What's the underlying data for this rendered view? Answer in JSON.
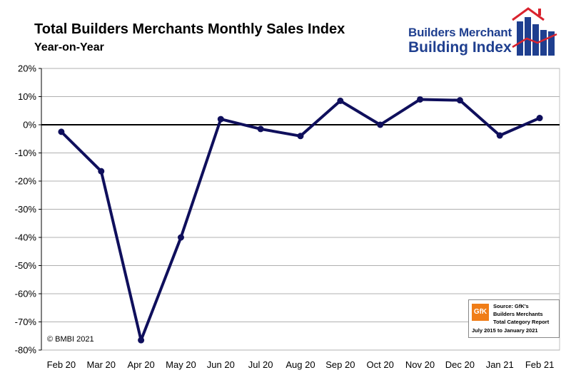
{
  "header": {
    "title": "Total Builders Merchants Monthly Sales Index",
    "subtitle": "Year-on-Year"
  },
  "logo": {
    "line1": "Builders Merchant",
    "line2": "Building Index",
    "colors": {
      "text": "#1f3f8f",
      "roof": "#d9232e",
      "bars": "#1f3f8f"
    }
  },
  "copyright": "© BMBI 2021",
  "source": {
    "badge": "GfK",
    "line1": "Source: GfK's",
    "line2": "Builders Merchants",
    "line3": "Total Category Report",
    "line4": "July 2015 to January 2021"
  },
  "chart_data": {
    "type": "line",
    "title": "Total Builders Merchants Monthly Sales Index",
    "subtitle": "Year-on-Year",
    "categories": [
      "Feb 20",
      "Mar 20",
      "Apr 20",
      "May 20",
      "Jun 20",
      "Jul 20",
      "Aug 20",
      "Sep 20",
      "Oct 20",
      "Nov 20",
      "Dec 20",
      "Jan 21",
      "Feb 21"
    ],
    "series": [
      {
        "values": [
          -2.5,
          -16.5,
          -76.5,
          -40.0,
          2.0,
          -1.5,
          -4.0,
          8.5,
          0.0,
          9.0,
          8.7,
          -3.8,
          2.4
        ],
        "color": "#0f0f5c"
      }
    ],
    "ylim": [
      -80,
      20
    ],
    "yticks": [
      20,
      10,
      0,
      -10,
      -20,
      -30,
      -40,
      -50,
      -60,
      -70,
      -80
    ],
    "ytick_labels": [
      "20%",
      "10%",
      "0%",
      "-10%",
      "-20%",
      "-30%",
      "-40%",
      "-50%",
      "-60%",
      "-70%",
      "-80%"
    ],
    "grid": true,
    "zero_line": true,
    "legend": "none"
  }
}
